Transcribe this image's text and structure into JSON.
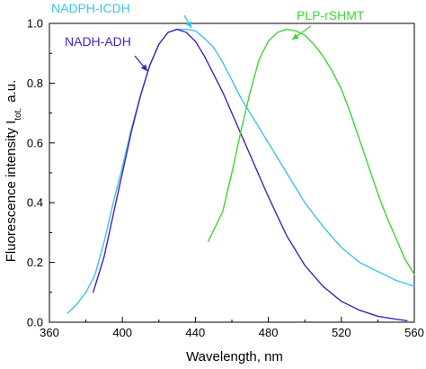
{
  "chart_data": {
    "type": "line",
    "title": "",
    "xlabel": "Wavelength, nm",
    "ylabel": "Fluorescence intensity I",
    "ylabel_subscript": "tot.",
    "ylabel_suffix": "a.u.",
    "xlim": [
      360,
      560
    ],
    "ylim": [
      0.0,
      1.0
    ],
    "xticks": [
      360,
      400,
      440,
      480,
      520,
      560
    ],
    "yticks": [
      0.0,
      0.2,
      0.4,
      0.6,
      0.8,
      1.0
    ],
    "xtick_labels": [
      "360",
      "400",
      "440",
      "480",
      "520",
      "560"
    ],
    "ytick_labels": [
      "0.0",
      "0.2",
      "0.4",
      "0.6",
      "0.8",
      "1.0"
    ],
    "grid": false,
    "series": [
      {
        "name": "NADPH-ICDH",
        "color": "#3fc3ea",
        "x": [
          370,
          375,
          380,
          385,
          390,
          395,
          400,
          405,
          410,
          415,
          420,
          425,
          430,
          435,
          440,
          445,
          450,
          455,
          460,
          465,
          470,
          480,
          490,
          500,
          510,
          520,
          530,
          540,
          550,
          560
        ],
        "y": [
          0.03,
          0.06,
          0.1,
          0.16,
          0.27,
          0.4,
          0.52,
          0.65,
          0.76,
          0.86,
          0.93,
          0.97,
          0.98,
          0.98,
          0.975,
          0.95,
          0.92,
          0.87,
          0.81,
          0.75,
          0.7,
          0.6,
          0.5,
          0.4,
          0.32,
          0.25,
          0.2,
          0.17,
          0.14,
          0.12
        ]
      },
      {
        "name": "NADH-ADH",
        "color": "#4a1fb5",
        "x": [
          384,
          390,
          395,
          400,
          405,
          410,
          415,
          420,
          425,
          430,
          435,
          440,
          445,
          450,
          455,
          460,
          465,
          470,
          475,
          480,
          490,
          500,
          510,
          520,
          530,
          540,
          550,
          556
        ],
        "y": [
          0.1,
          0.22,
          0.36,
          0.5,
          0.64,
          0.76,
          0.86,
          0.93,
          0.97,
          0.98,
          0.97,
          0.94,
          0.89,
          0.83,
          0.77,
          0.7,
          0.63,
          0.56,
          0.49,
          0.42,
          0.29,
          0.19,
          0.12,
          0.07,
          0.04,
          0.02,
          0.01,
          0.005
        ]
      },
      {
        "name": "PLP-rSHMT",
        "color": "#3cd634",
        "x": [
          447,
          455,
          460,
          465,
          470,
          475,
          480,
          485,
          490,
          495,
          500,
          505,
          510,
          515,
          520,
          525,
          530,
          535,
          540,
          545,
          550,
          555,
          560
        ],
        "y": [
          0.27,
          0.37,
          0.5,
          0.64,
          0.77,
          0.88,
          0.94,
          0.97,
          0.98,
          0.975,
          0.96,
          0.93,
          0.89,
          0.84,
          0.78,
          0.7,
          0.61,
          0.52,
          0.43,
          0.35,
          0.28,
          0.21,
          0.16
        ]
      }
    ],
    "annotations": [
      {
        "text": "NADPH-ICDH",
        "color": "#3fc3ea",
        "series": "NADPH-ICDH"
      },
      {
        "text": "NADH-ADH",
        "color": "#4a1fb5",
        "series": "NADH-ADH"
      },
      {
        "text": "PLP-rSHMT",
        "color": "#3cd634",
        "series": "PLP-rSHMT"
      }
    ]
  }
}
